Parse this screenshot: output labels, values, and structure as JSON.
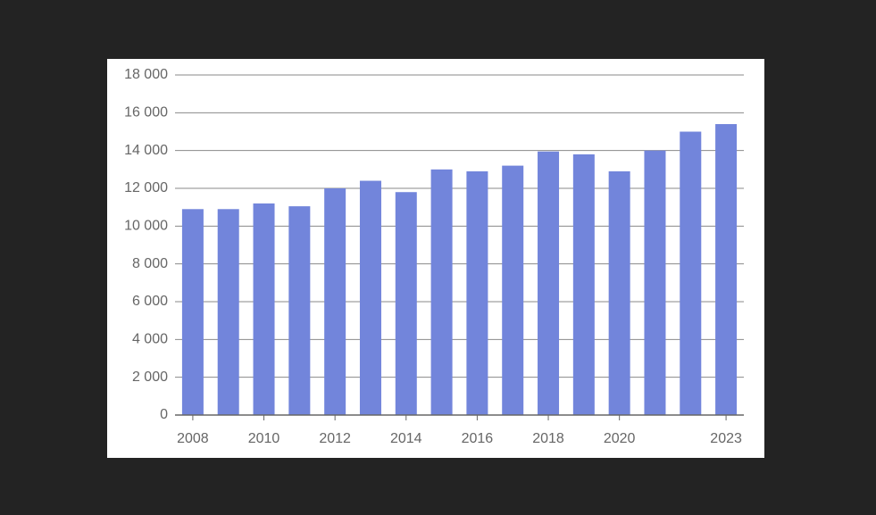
{
  "chart_data": {
    "type": "bar",
    "categories": [
      "2008",
      null,
      "2010",
      null,
      "2012",
      null,
      "2014",
      null,
      "2016",
      null,
      "2018",
      null,
      "2020",
      null,
      null,
      "2023"
    ],
    "values": [
      10900,
      10900,
      11200,
      11050,
      12000,
      12400,
      11800,
      13000,
      12900,
      13200,
      13950,
      13800,
      12900,
      14000,
      15000,
      15400
    ],
    "color": "#7285db",
    "ylim": [
      0,
      18000
    ],
    "yticks": [
      0,
      {
        "value": 2000,
        "label": "2 000"
      },
      {
        "value": 4000,
        "label": "4 000"
      },
      {
        "value": 6000,
        "label": "6 000"
      },
      {
        "value": 8000,
        "label": "8 000"
      },
      {
        "value": 10000,
        "label": "10 000"
      },
      {
        "value": 12000,
        "label": "12 000"
      },
      {
        "value": 14000,
        "label": "14 000"
      },
      {
        "value": 16000,
        "label": "16 000"
      },
      {
        "value": 18000,
        "label": "18 000"
      }
    ],
    "grid": true
  }
}
